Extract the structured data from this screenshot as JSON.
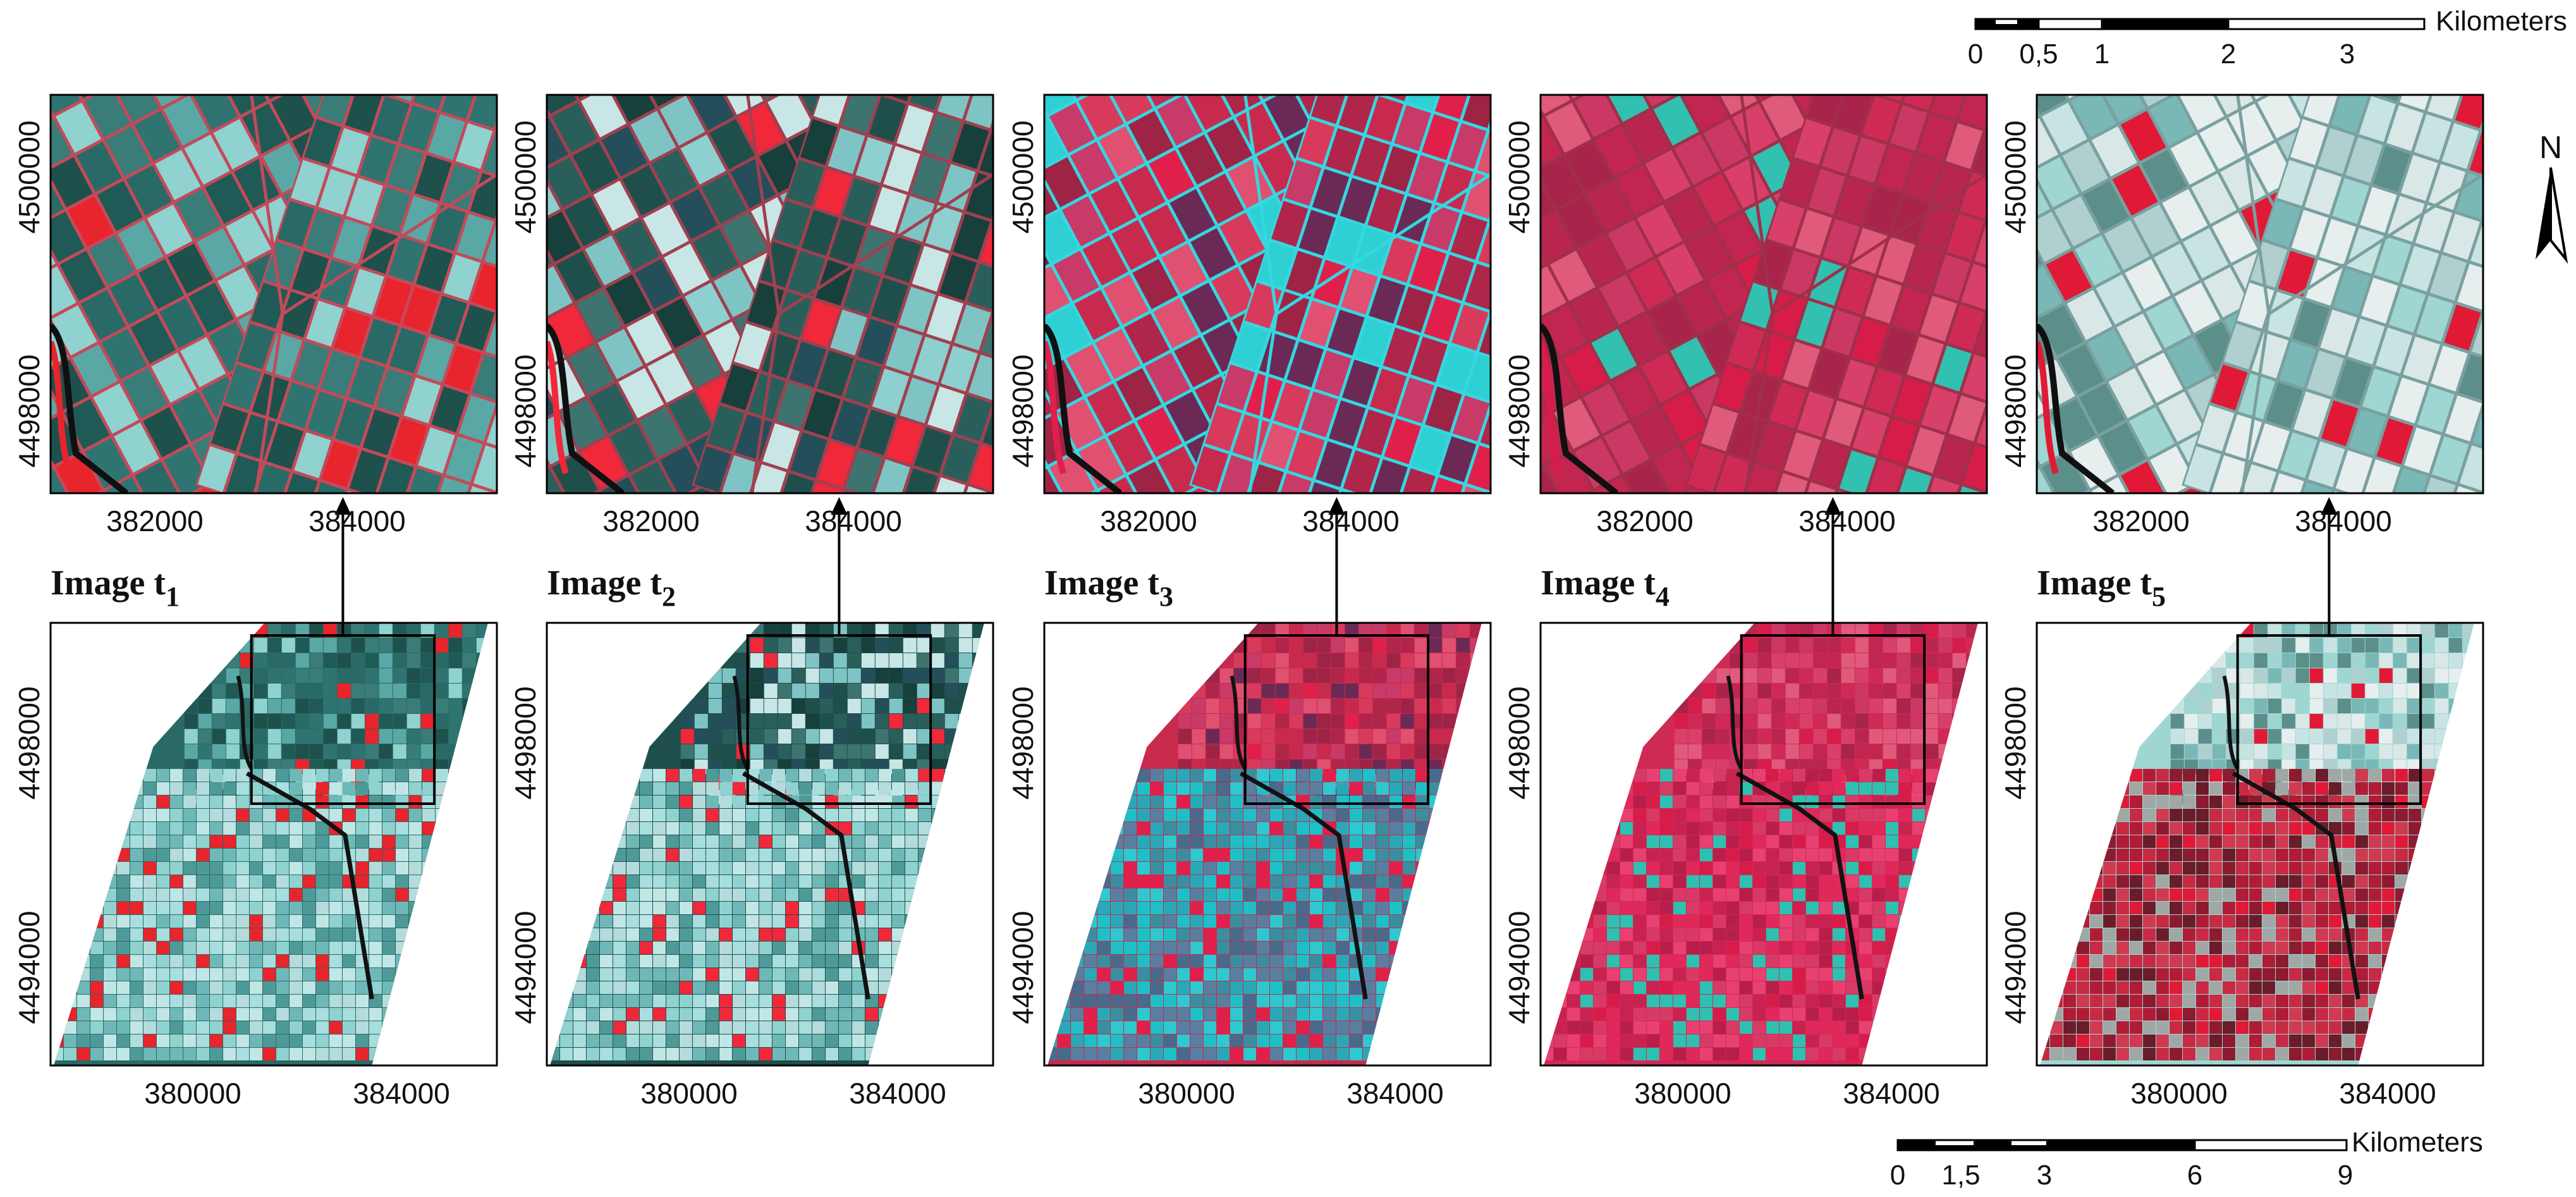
{
  "panels": [
    {
      "title": "Image t",
      "sub": "1",
      "palette": "t1"
    },
    {
      "title": "Image t",
      "sub": "2",
      "palette": "t2"
    },
    {
      "title": "Image t",
      "sub": "3",
      "palette": "t3"
    },
    {
      "title": "Image t",
      "sub": "4",
      "palette": "t4"
    },
    {
      "title": "Image t",
      "sub": "5",
      "palette": "t5"
    }
  ],
  "zoom_axis": {
    "x_ticks": [
      "382000",
      "384000"
    ],
    "y_ticks": [
      "4500000",
      "4498000"
    ]
  },
  "full_axis": {
    "x_ticks": [
      "380000",
      "384000"
    ],
    "y_ticks": [
      "4498000",
      "4494000"
    ]
  },
  "scale_top": {
    "unit": "Kilometers",
    "labels": [
      "0",
      "0,5",
      "1",
      "2",
      "3"
    ]
  },
  "scale_bottom": {
    "unit": "Kilometers",
    "labels": [
      "0",
      "1,5",
      "3",
      "6",
      "9"
    ]
  },
  "north_label": "N",
  "colors": {
    "t1": {
      "base": "#2a6a66",
      "light": "#8fd2d0",
      "red": "#e8242c",
      "line": "#c44a5a"
    },
    "t2": {
      "base": "#1f4f4b",
      "light": "#8ecfcf",
      "red": "#f0283a",
      "line": "#a04050"
    },
    "t3": {
      "base": "#c82a4e",
      "light": "#2ed0d4",
      "red": "#e0204a",
      "line": "#35d7e0"
    },
    "t4": {
      "base": "#cf2a56",
      "light": "#32c0b0",
      "red": "#d81c4a",
      "line": "#a0304a"
    },
    "t5": {
      "base": "#9fd6d2",
      "light": "#e6eeee",
      "red": "#e01a36",
      "line": "#7aa0a0"
    }
  }
}
